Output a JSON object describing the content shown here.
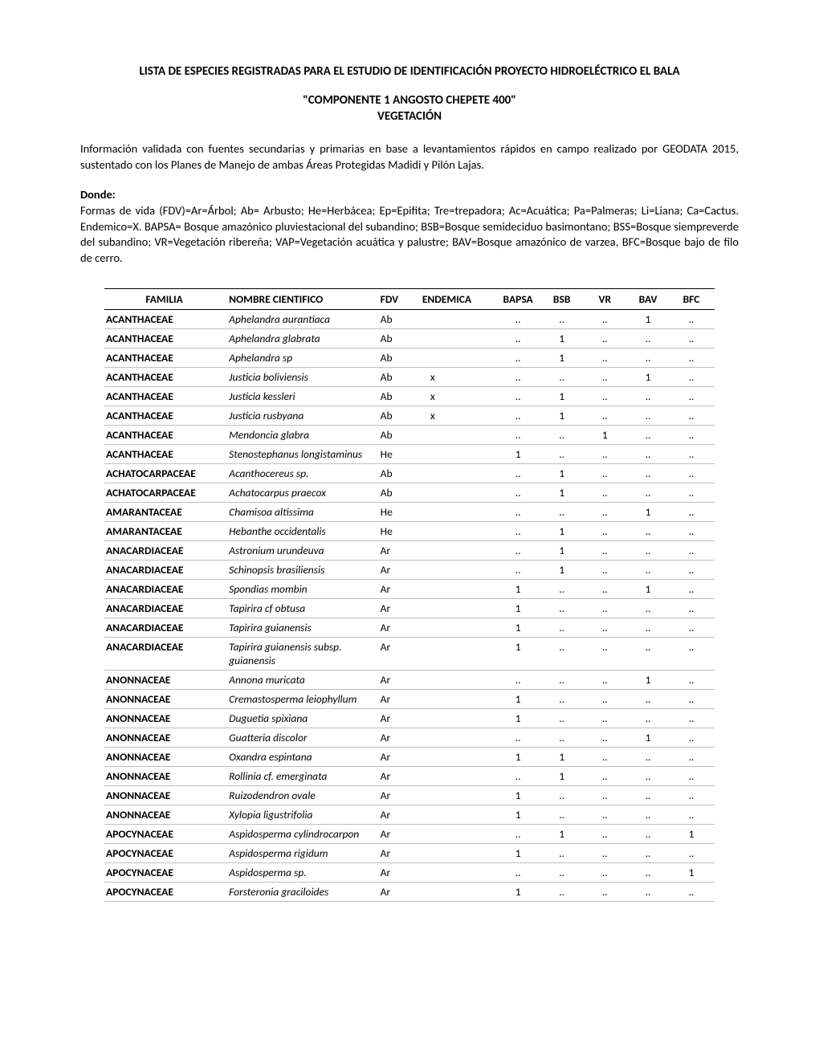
{
  "title_main": "LISTA DE ESPECIES REGISTRADAS PARA EL ESTUDIO DE IDENTIFICACIÓN PROYECTO HIDROELÉCTRICO EL BALA",
  "title_sub1": "\"COMPONENTE 1 ANGOSTO CHEPETE 400\"",
  "title_sub2": "VEGETACIÓN",
  "intro": "Información validada con fuentes secundarias y primarias en base a levantamientos rápidos en campo realizado por GEODATA 2015, sustentado con los Planes de Manejo de ambas Áreas Protegidas Madidi y Pilón Lajas.",
  "donde_label": "Donde:",
  "donde_text": "Formas de vida (FDV)=Ar=Árbol; Ab= Arbusto; He=Herbácea; Ep=Epifita; Tre=trepadora; Ac=Acuática; Pa=Palmeras; Li=Liana; Ca=Cactus. Endemico=X. BAPSA= Bosque amazónico pluviestacional del subandino; BSB=Bosque semideciduo basimontano; BSS=Bosque siempreverde del subandino; VR=Vegetación ribereña; VAP=Vegetación acuática y palustre; BAV=Bosque amazónico de varzea, BFC=Bosque bajo de filo de cerro.",
  "headers": {
    "familia": "FAMILIA",
    "nombre": "NOMBRE CIENTIFICO",
    "fdv": "FDV",
    "endemica": "ENDEMICA",
    "bapsa": "BAPSA",
    "bsb": "BSB",
    "vr": "VR",
    "bav": "BAV",
    "bfc": "BFC"
  },
  "dot": "..",
  "rows": [
    {
      "familia": "ACANTHACEAE",
      "nombre": "Aphelandra aurantiaca",
      "fdv": "Ab",
      "endemica": "",
      "bapsa": "..",
      "bsb": "..",
      "vr": "..",
      "bav": "1",
      "bfc": ".."
    },
    {
      "familia": "ACANTHACEAE",
      "nombre": "Aphelandra glabrata",
      "fdv": "Ab",
      "endemica": "",
      "bapsa": "..",
      "bsb": "1",
      "vr": "..",
      "bav": "..",
      "bfc": ".."
    },
    {
      "familia": "ACANTHACEAE",
      "nombre": "Aphelandra sp",
      "fdv": "Ab",
      "endemica": "",
      "bapsa": "..",
      "bsb": "1",
      "vr": "..",
      "bav": "..",
      "bfc": ".."
    },
    {
      "familia": "ACANTHACEAE",
      "nombre": "Justicia boliviensis",
      "fdv": "Ab",
      "endemica": "x",
      "bapsa": "..",
      "bsb": "..",
      "vr": "..",
      "bav": "1",
      "bfc": ".."
    },
    {
      "familia": "ACANTHACEAE",
      "nombre": "Justicia kessleri",
      "fdv": "Ab",
      "endemica": "x",
      "bapsa": "..",
      "bsb": "1",
      "vr": "..",
      "bav": "..",
      "bfc": ".."
    },
    {
      "familia": "ACANTHACEAE",
      "nombre": "Justicia rusbyana",
      "fdv": "Ab",
      "endemica": "x",
      "bapsa": "..",
      "bsb": "1",
      "vr": "..",
      "bav": "..",
      "bfc": ".."
    },
    {
      "familia": "ACANTHACEAE",
      "nombre": "Mendoncia glabra",
      "fdv": "Ab",
      "endemica": "",
      "bapsa": "..",
      "bsb": "..",
      "vr": "1",
      "bav": "..",
      "bfc": ".."
    },
    {
      "familia": "ACANTHACEAE",
      "nombre": "Stenostephanus longistaminus",
      "fdv": "He",
      "endemica": "",
      "bapsa": "1",
      "bsb": "..",
      "vr": "..",
      "bav": "..",
      "bfc": ".."
    },
    {
      "familia": "ACHATOCARPACEAE",
      "nombre": "Acanthocereus sp.",
      "fdv": "Ab",
      "endemica": "",
      "bapsa": "..",
      "bsb": "1",
      "vr": "..",
      "bav": "..",
      "bfc": ".."
    },
    {
      "familia": "ACHATOCARPACEAE",
      "nombre": "Achatocarpus praecox",
      "fdv": "Ab",
      "endemica": "",
      "bapsa": "..",
      "bsb": "1",
      "vr": "..",
      "bav": "..",
      "bfc": ".."
    },
    {
      "familia": "AMARANTACEAE",
      "nombre": "Chamisoa altissima",
      "fdv": "He",
      "endemica": "",
      "bapsa": "..",
      "bsb": "..",
      "vr": "..",
      "bav": "1",
      "bfc": ".."
    },
    {
      "familia": "AMARANTACEAE",
      "nombre": "Hebanthe occidentalis",
      "fdv": "He",
      "endemica": "",
      "bapsa": "..",
      "bsb": "1",
      "vr": "..",
      "bav": "..",
      "bfc": ".."
    },
    {
      "familia": "ANACARDIACEAE",
      "nombre": "Astronium urundeuva",
      "fdv": "Ar",
      "endemica": "",
      "bapsa": "..",
      "bsb": "1",
      "vr": "..",
      "bav": "..",
      "bfc": ".."
    },
    {
      "familia": "ANACARDIACEAE",
      "nombre": "Schinopsis brasiliensis",
      "fdv": "Ar",
      "endemica": "",
      "bapsa": "..",
      "bsb": "1",
      "vr": "..",
      "bav": "..",
      "bfc": ".."
    },
    {
      "familia": "ANACARDIACEAE",
      "nombre": "Spondias mombin",
      "fdv": "Ar",
      "endemica": "",
      "bapsa": "1",
      "bsb": "..",
      "vr": "..",
      "bav": "1",
      "bfc": ".."
    },
    {
      "familia": "ANACARDIACEAE",
      "nombre": "Tapirira cf obtusa",
      "fdv": "Ar",
      "endemica": "",
      "bapsa": "1",
      "bsb": "..",
      "vr": "..",
      "bav": "..",
      "bfc": ".."
    },
    {
      "familia": "ANACARDIACEAE",
      "nombre": "Tapirira guianensis",
      "fdv": "Ar",
      "endemica": "",
      "bapsa": "1",
      "bsb": "..",
      "vr": "..",
      "bav": "..",
      "bfc": ".."
    },
    {
      "familia": "ANACARDIACEAE",
      "nombre": "Tapirira guianensis subsp. guianensis",
      "fdv": "Ar",
      "endemica": "",
      "bapsa": "1",
      "bsb": "..",
      "vr": "..",
      "bav": "..",
      "bfc": ".."
    },
    {
      "familia": "ANONNACEAE",
      "nombre": "Annona muricata",
      "fdv": "Ar",
      "endemica": "",
      "bapsa": "..",
      "bsb": "..",
      "vr": "..",
      "bav": "1",
      "bfc": ".."
    },
    {
      "familia": "ANONNACEAE",
      "nombre": "Cremastosperma leiophyllum",
      "fdv": "Ar",
      "endemica": "",
      "bapsa": "1",
      "bsb": "..",
      "vr": "..",
      "bav": "..",
      "bfc": ".."
    },
    {
      "familia": "ANONNACEAE",
      "nombre": "Duguetia spixiana",
      "fdv": "Ar",
      "endemica": "",
      "bapsa": "1",
      "bsb": "..",
      "vr": "..",
      "bav": "..",
      "bfc": ".."
    },
    {
      "familia": "ANONNACEAE",
      "nombre": "Guatteria discolor",
      "fdv": "Ar",
      "endemica": "",
      "bapsa": "..",
      "bsb": "..",
      "vr": "..",
      "bav": "1",
      "bfc": ".."
    },
    {
      "familia": "ANONNACEAE",
      "nombre": "Oxandra espintana",
      "fdv": "Ar",
      "endemica": "",
      "bapsa": "1",
      "bsb": "1",
      "vr": "..",
      "bav": "..",
      "bfc": ".."
    },
    {
      "familia": "ANONNACEAE",
      "nombre": "Rollinia cf.  emerginata",
      "fdv": "Ar",
      "endemica": "",
      "bapsa": "..",
      "bsb": "1",
      "vr": "..",
      "bav": "..",
      "bfc": ".."
    },
    {
      "familia": "ANONNACEAE",
      "nombre": "Ruizodendron ovale",
      "fdv": "Ar",
      "endemica": "",
      "bapsa": "1",
      "bsb": "..",
      "vr": "..",
      "bav": "..",
      "bfc": ".."
    },
    {
      "familia": "ANONNACEAE",
      "nombre": "Xylopia ligustrifolia",
      "fdv": "Ar",
      "endemica": "",
      "bapsa": "1",
      "bsb": "..",
      "vr": "..",
      "bav": "..",
      "bfc": ".."
    },
    {
      "familia": "APOCYNACEAE",
      "nombre": "Aspidosperma cylindrocarpon",
      "fdv": "Ar",
      "endemica": "",
      "bapsa": "..",
      "bsb": "1",
      "vr": "..",
      "bav": "..",
      "bfc": "1"
    },
    {
      "familia": "APOCYNACEAE",
      "nombre": "Aspidosperma rigidum",
      "fdv": "Ar",
      "endemica": "",
      "bapsa": "1",
      "bsb": "..",
      "vr": "..",
      "bav": "..",
      "bfc": ".."
    },
    {
      "familia": "APOCYNACEAE",
      "nombre": "Aspidosperma sp.",
      "fdv": "Ar",
      "endemica": "",
      "bapsa": "..",
      "bsb": "..",
      "vr": "..",
      "bav": "..",
      "bfc": "1"
    },
    {
      "familia": "APOCYNACEAE",
      "nombre": "Forsteronia graciloides",
      "fdv": "Ar",
      "endemica": "",
      "bapsa": "1",
      "bsb": "..",
      "vr": "..",
      "bav": "..",
      "bfc": ".."
    }
  ]
}
